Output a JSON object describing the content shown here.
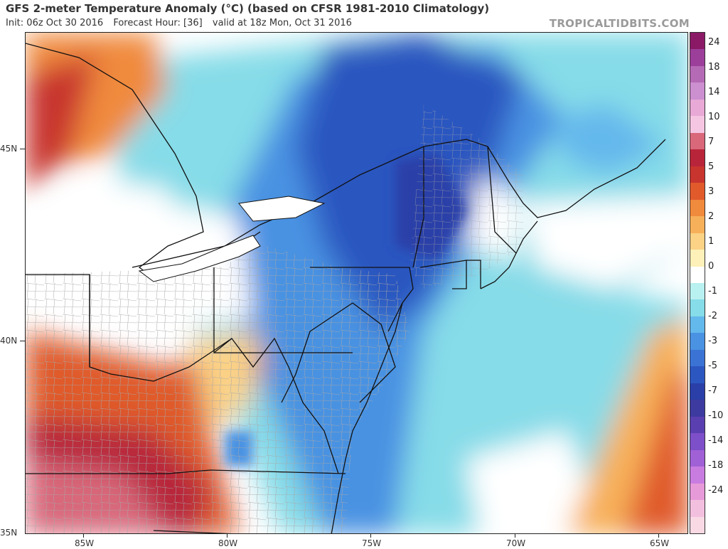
{
  "header": {
    "title": "GFS 2-meter Temperature Anomaly (°C) (based on CFSR 1981-2010 Climatology)",
    "init": "Init: 06z Oct 30 2016",
    "forecast_hour": "Forecast Hour: [36]",
    "valid": "valid at 18z Mon, Oct 31 2016"
  },
  "brand": "TROPICALTIDBITS.COM",
  "axes": {
    "x_labels": [
      "85W",
      "80W",
      "75W",
      "70W",
      "65W"
    ],
    "y_labels": [
      "45N",
      "40N",
      "35N"
    ]
  },
  "colorbar": {
    "labels": [
      "24",
      "18",
      "14",
      "10",
      "7",
      "5",
      "3",
      "2",
      "1",
      "0",
      "-1",
      "-2",
      "-3",
      "-5",
      "-7",
      "-10",
      "-14",
      "-18",
      "-24"
    ],
    "colors": [
      "#8b1a66",
      "#9c3f9b",
      "#b56ab5",
      "#cc8fd0",
      "#e8a9d6",
      "#f4c6e1",
      "#d8687a",
      "#b8253a",
      "#c8342e",
      "#e05a2c",
      "#f08a3c",
      "#f7b05a",
      "#fbd286",
      "#fdf0b8",
      "#ffffff",
      "#b9f0f0",
      "#86dce8",
      "#63b8ec",
      "#4a92e2",
      "#3a73d4",
      "#2c57c0",
      "#2a3fa8",
      "#3d3aa0",
      "#5a3fb0",
      "#7d4fc8",
      "#a060d6",
      "#c97ce0",
      "#e79ad8",
      "#f3bfdf",
      "#f8d9e4"
    ]
  },
  "legend_colors": {
    "land_border": "#111111",
    "county_line": "#9e9e9e"
  }
}
